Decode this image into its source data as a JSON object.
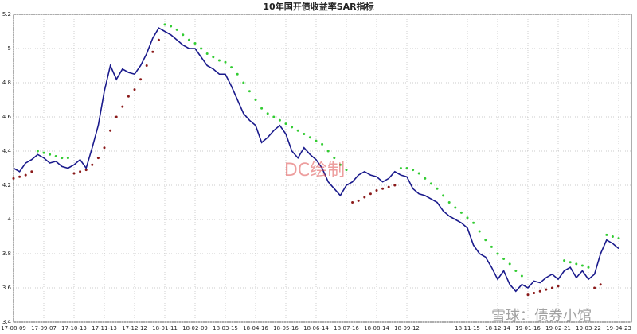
{
  "chart_data": {
    "type": "line",
    "title": "10年国开债收益率SAR指标",
    "annotations": [
      "DC绘制",
      "雪球：债券小馆"
    ],
    "categories": [
      "17-08-09",
      null,
      null,
      null,
      null,
      "17-09-07",
      null,
      null,
      null,
      null,
      "17-10-13",
      null,
      null,
      null,
      null,
      "17-11-13",
      null,
      null,
      null,
      null,
      "17-12-12",
      null,
      null,
      null,
      null,
      "18-01-11",
      null,
      null,
      null,
      null,
      "18-02-09",
      null,
      null,
      null,
      null,
      "18-03-15",
      null,
      null,
      null,
      null,
      "18-04-16",
      null,
      null,
      null,
      null,
      "18-05-16",
      null,
      null,
      null,
      null,
      "18-06-14",
      null,
      null,
      null,
      null,
      "18-07-16",
      null,
      null,
      null,
      null,
      "18-08-14",
      null,
      null,
      null,
      null,
      "18-09-12",
      null,
      null,
      null,
      null,
      null,
      null,
      null,
      null,
      null,
      "18-11-15",
      null,
      null,
      null,
      null,
      "18-12-14",
      null,
      null,
      null,
      null,
      "19-01-16",
      null,
      null,
      null,
      null,
      "19-02-21",
      null,
      null,
      null,
      null,
      "19-03-22",
      null,
      null,
      null,
      null,
      "19-04-23"
    ],
    "series": [
      {
        "style": "line",
        "color": "#1a1a8c",
        "values": [
          4.3,
          4.28,
          4.33,
          4.35,
          4.38,
          4.36,
          4.33,
          4.34,
          4.31,
          4.3,
          4.32,
          4.35,
          4.3,
          4.42,
          4.55,
          4.75,
          4.9,
          4.82,
          4.88,
          4.86,
          4.85,
          4.9,
          4.97,
          5.06,
          5.12,
          5.1,
          5.08,
          5.05,
          5.02,
          5.0,
          5.0,
          4.95,
          4.9,
          4.88,
          4.85,
          4.85,
          4.78,
          4.7,
          4.62,
          4.58,
          4.55,
          4.45,
          4.48,
          4.52,
          4.55,
          4.5,
          4.4,
          4.36,
          4.42,
          4.38,
          4.35,
          4.3,
          4.22,
          4.18,
          4.14,
          4.2,
          4.22,
          4.26,
          4.28,
          4.26,
          4.25,
          4.22,
          4.24,
          4.28,
          4.26,
          4.25,
          4.18,
          4.15,
          4.14,
          4.12,
          4.1,
          4.05,
          4.02,
          4.0,
          3.98,
          3.95,
          3.85,
          3.8,
          3.78,
          3.72,
          3.65,
          3.7,
          3.62,
          3.58,
          3.62,
          3.6,
          3.64,
          3.63,
          3.66,
          3.68,
          3.65,
          3.7,
          3.72,
          3.66,
          3.7,
          3.65,
          3.68,
          3.8,
          3.88,
          3.86,
          3.83
        ]
      },
      {
        "style": "dots",
        "color": "#8b1a1a",
        "values": [
          4.24,
          4.25,
          4.26,
          4.28,
          null,
          null,
          null,
          null,
          null,
          null,
          4.27,
          4.28,
          4.29,
          4.32,
          4.36,
          4.42,
          4.52,
          4.6,
          4.66,
          4.72,
          4.76,
          4.82,
          4.9,
          4.98,
          5.05,
          null,
          null,
          null,
          null,
          null,
          null,
          null,
          null,
          null,
          null,
          null,
          null,
          null,
          null,
          null,
          null,
          null,
          null,
          null,
          null,
          null,
          null,
          null,
          null,
          null,
          null,
          null,
          null,
          null,
          null,
          null,
          4.1,
          4.11,
          4.13,
          4.15,
          4.17,
          4.18,
          4.19,
          4.2,
          null,
          null,
          null,
          null,
          null,
          null,
          null,
          null,
          null,
          null,
          null,
          null,
          null,
          null,
          null,
          null,
          null,
          null,
          null,
          null,
          null,
          3.56,
          3.57,
          3.58,
          3.59,
          3.6,
          3.61,
          null,
          null,
          null,
          null,
          null,
          3.6,
          3.62,
          null,
          null,
          null
        ]
      },
      {
        "style": "dots",
        "color": "#33cc33",
        "values": [
          null,
          null,
          null,
          null,
          4.4,
          4.39,
          4.38,
          4.37,
          4.36,
          4.36,
          null,
          null,
          null,
          null,
          null,
          null,
          null,
          null,
          null,
          null,
          null,
          null,
          null,
          null,
          null,
          5.14,
          5.13,
          5.11,
          5.08,
          5.05,
          5.03,
          5.0,
          4.97,
          4.95,
          4.93,
          4.92,
          4.89,
          4.85,
          4.8,
          4.75,
          4.7,
          4.65,
          4.62,
          4.6,
          4.58,
          4.56,
          4.54,
          4.52,
          4.5,
          4.48,
          4.46,
          4.44,
          4.4,
          4.36,
          4.32,
          4.29,
          null,
          null,
          null,
          null,
          null,
          null,
          null,
          null,
          4.3,
          4.3,
          4.29,
          4.27,
          4.24,
          4.21,
          4.18,
          4.14,
          4.1,
          4.07,
          4.04,
          4.01,
          3.98,
          3.93,
          3.88,
          3.84,
          3.8,
          3.77,
          3.74,
          3.7,
          3.67,
          null,
          null,
          null,
          null,
          null,
          null,
          3.76,
          3.75,
          3.74,
          3.73,
          3.72,
          null,
          null,
          3.91,
          3.9,
          3.89
        ]
      }
    ],
    "ylim": [
      3.4,
      5.2
    ],
    "yticks": [
      3.4,
      3.6,
      3.8,
      4,
      4.2,
      4.4,
      4.6,
      4.8,
      5,
      5.2
    ],
    "grid": true
  }
}
